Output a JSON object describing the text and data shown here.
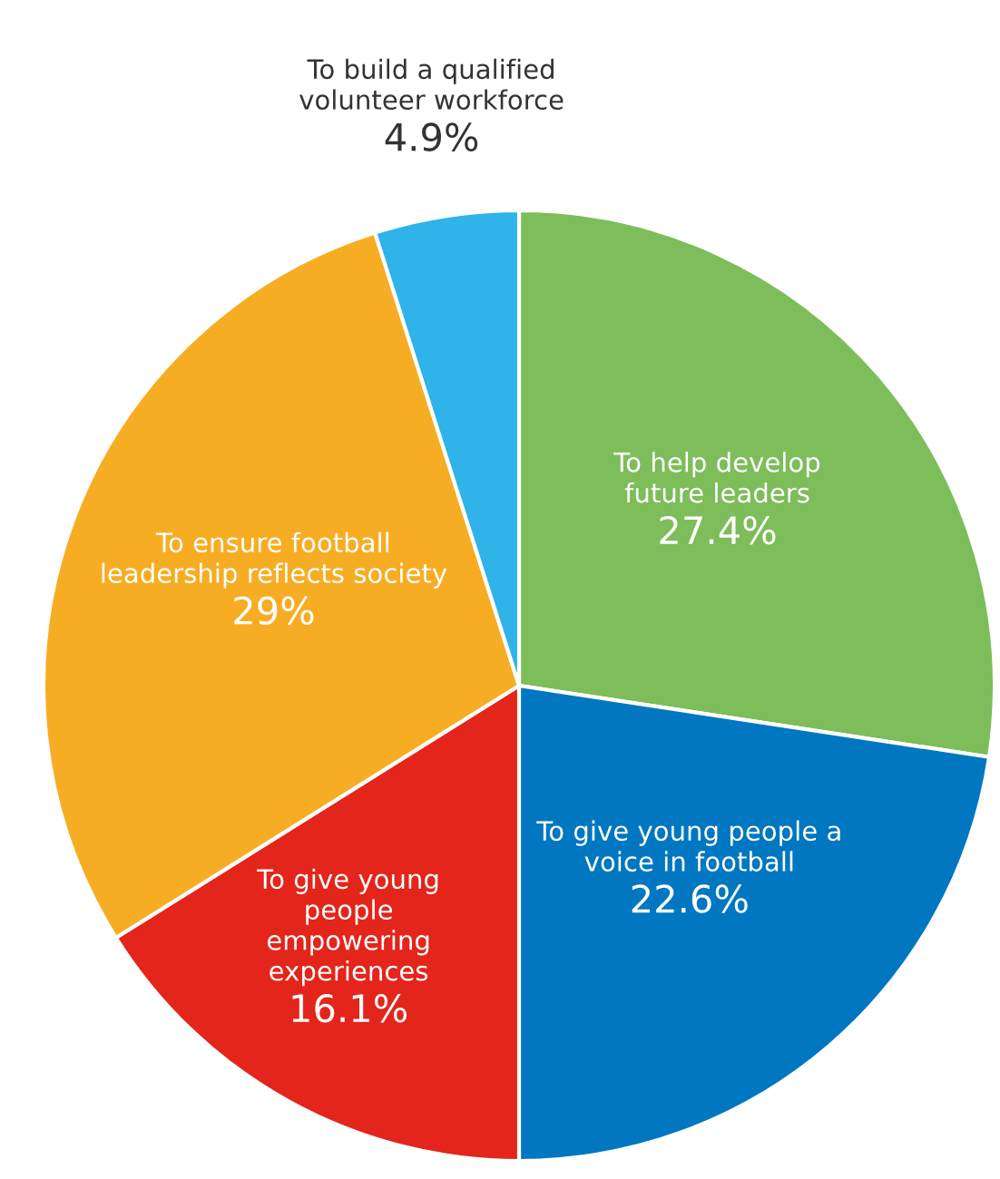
{
  "chart_data": {
    "type": "pie",
    "categories": [
      "To help develop\nfuture leaders",
      "To give young people a\nvoice in football",
      "To give young\npeople\nempowering\nexperiences",
      "To ensure football\nleadership reflects society",
      "To build a qualified\nvolunteer workforce"
    ],
    "values": [
      27.4,
      22.6,
      16.1,
      29,
      4.9
    ],
    "value_labels": [
      "27.4%",
      "22.6%",
      "16.1%",
      "29%",
      "4.9%"
    ],
    "colors": [
      "#7dbd5a",
      "#0077c0",
      "#e3251b",
      "#f7ad23",
      "#2fb3e8"
    ]
  }
}
